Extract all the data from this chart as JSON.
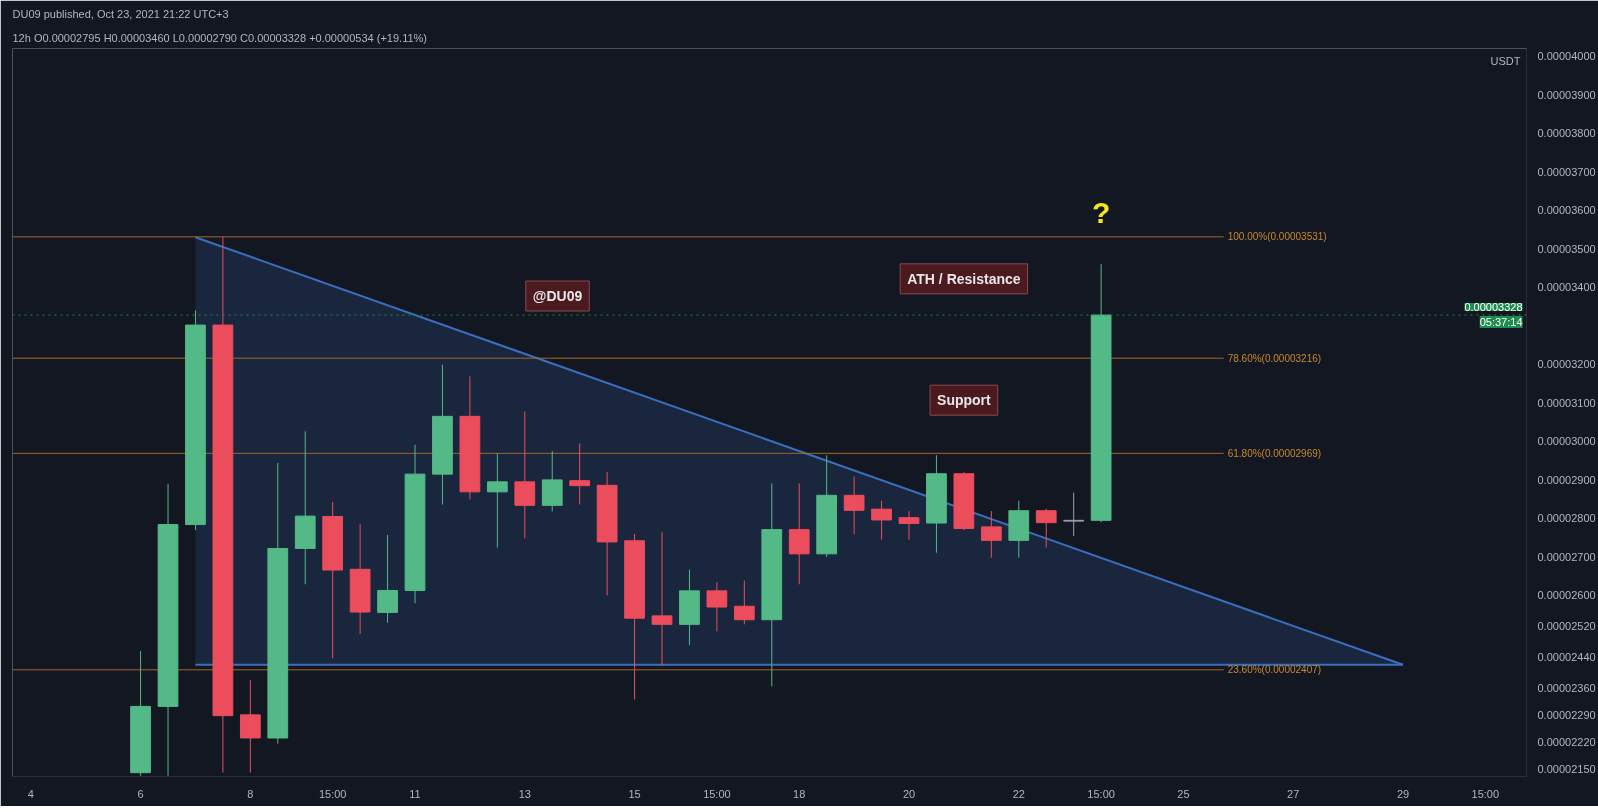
{
  "chart_data": {
    "type": "candlestick",
    "ylabel": "USDT",
    "annotations": [
      "DU09 published, Oct 23, 2021 21:22 UTC+3",
      "12h  O0.00002795 H0.00003460 L0.00002790 C0.00003328 +0.00000534 (+19.11%)",
      "@DU09",
      {
        "text": "ATH / Resistance",
        "x": "2021-10-21T03:00",
        "y": 3.531e-05
      },
      {
        "text": "Support",
        "x": "2021-10-21T03:00",
        "y": 3.216e-05
      },
      "?"
    ],
    "x": [
      "2021-10-06T03:00",
      "2021-10-06T15:00",
      "2021-10-07T03:00",
      "2021-10-07T15:00",
      "2021-10-08T03:00",
      "2021-10-08T15:00",
      "2021-10-09T03:00",
      "2021-10-09T15:00",
      "2021-10-10T03:00",
      "2021-10-10T15:00",
      "2021-10-11T03:00",
      "2021-10-11T15:00",
      "2021-10-12T03:00",
      "2021-10-12T15:00",
      "2021-10-13T03:00",
      "2021-10-13T15:00",
      "2021-10-14T03:00",
      "2021-10-14T15:00",
      "2021-10-15T03:00",
      "2021-10-15T15:00",
      "2021-10-16T03:00",
      "2021-10-16T15:00",
      "2021-10-17T03:00",
      "2021-10-17T15:00",
      "2021-10-18T03:00",
      "2021-10-18T15:00",
      "2021-10-19T03:00",
      "2021-10-19T15:00",
      "2021-10-20T03:00",
      "2021-10-20T15:00",
      "2021-10-21T03:00",
      "2021-10-21T15:00",
      "2021-10-22T03:00",
      "2021-10-22T15:00",
      "2021-10-23T03:00",
      "2021-10-23T15:00"
    ],
    "ohlc": [
      [
        2.14e-05,
        2.456e-05,
        2.132e-05,
        2.312e-05
      ],
      [
        2.312e-05,
        2.89e-05,
        2.132e-05,
        2.784e-05
      ],
      [
        2.784e-05,
        3.34e-05,
        2.77e-05,
        3.302e-05
      ],
      [
        3.302e-05,
        3.531e-05,
        2.14e-05,
        2.288e-05
      ],
      [
        2.29e-05,
        2.38e-05,
        2.14e-05,
        2.23e-05
      ],
      [
        2.23e-05,
        2.944e-05,
        2.215e-05,
        2.722e-05
      ],
      [
        2.722e-05,
        3.026e-05,
        2.629e-05,
        2.806e-05
      ],
      [
        2.805e-05,
        2.843e-05,
        2.437e-05,
        2.666e-05
      ],
      [
        2.668e-05,
        2.785e-05,
        2.5e-05,
        2.557e-05
      ],
      [
        2.556e-05,
        2.757e-05,
        2.529e-05,
        2.613e-05
      ],
      [
        2.613e-05,
        2.991e-05,
        2.58e-05,
        2.915e-05
      ],
      [
        2.915e-05,
        3.199e-05,
        2.836e-05,
        3.065e-05
      ],
      [
        3.065e-05,
        3.169e-05,
        2.849e-05,
        2.869e-05
      ],
      [
        2.869e-05,
        2.969e-05,
        2.724e-05,
        2.895e-05
      ],
      [
        2.895e-05,
        3.078e-05,
        2.748e-05,
        2.834e-05
      ],
      [
        2.834e-05,
        2.975e-05,
        2.818e-05,
        2.9e-05
      ],
      [
        2.898e-05,
        2.995e-05,
        2.836e-05,
        2.885e-05
      ],
      [
        2.886e-05,
        2.921e-05,
        2.6e-05,
        2.739e-05
      ],
      [
        2.742e-05,
        2.76e-05,
        2.33e-05,
        2.541e-05
      ],
      [
        2.547e-05,
        2.764e-05,
        2.418e-05,
        2.525e-05
      ],
      [
        2.525e-05,
        2.667e-05,
        2.471e-05,
        2.612e-05
      ],
      [
        2.612e-05,
        2.634e-05,
        2.507e-05,
        2.57e-05
      ],
      [
        2.572e-05,
        2.639e-05,
        2.525e-05,
        2.537e-05
      ],
      [
        2.537e-05,
        2.891e-05,
        2.364e-05,
        2.771e-05
      ],
      [
        2.771e-05,
        2.891e-05,
        2.629e-05,
        2.708e-05
      ],
      [
        2.708e-05,
        2.964e-05,
        2.7e-05,
        2.86e-05
      ],
      [
        2.86e-05,
        2.909e-05,
        2.759e-05,
        2.821e-05
      ],
      [
        2.824e-05,
        2.846e-05,
        2.745e-05,
        2.796e-05
      ],
      [
        2.802e-05,
        2.819e-05,
        2.745e-05,
        2.787e-05
      ],
      [
        2.788e-05,
        2.964e-05,
        2.711e-05,
        2.916e-05
      ],
      [
        2.916e-05,
        2.92e-05,
        2.77e-05,
        2.774e-05
      ],
      [
        2.778e-05,
        2.819e-05,
        2.698e-05,
        2.743e-05
      ],
      [
        2.743e-05,
        2.846e-05,
        2.698e-05,
        2.82e-05
      ],
      [
        2.82e-05,
        2.825e-05,
        2.724e-05,
        2.789e-05
      ],
      [
        2.793e-05,
        2.867e-05,
        2.754e-05,
        2.795e-05
      ],
      [
        2.795e-05,
        3.46e-05,
        2.79e-05,
        3.328e-05
      ]
    ],
    "colors": [
      "#53b987",
      "#53b987",
      "#53b987",
      "#eb4d5c",
      "#eb4d5c",
      "#53b987",
      "#53b987",
      "#eb4d5c",
      "#eb4d5c",
      "#53b987",
      "#53b987",
      "#53b987",
      "#eb4d5c",
      "#53b987",
      "#eb4d5c",
      "#53b987",
      "#eb4d5c",
      "#eb4d5c",
      "#eb4d5c",
      "#eb4d5c",
      "#53b987",
      "#eb4d5c",
      "#eb4d5c",
      "#53b987",
      "#eb4d5c",
      "#53b987",
      "#eb4d5c",
      "#eb4d5c",
      "#eb4d5c",
      "#53b987",
      "#eb4d5c",
      "#eb4d5c",
      "#53b987",
      "#eb4d5c",
      "#9aa0a8",
      "#53b987"
    ],
    "series": [
      {
        "type": "line",
        "color": "#3a6fbf",
        "x": [
          "2021-10-07T03:00",
          "2021-10-29T03:00"
        ],
        "values": [
          2.42e-05,
          2.42e-05
        ]
      },
      {
        "type": "area",
        "color": "#3a6fbf",
        "x": [
          "2021-10-07T03:00",
          "2021-10-29T03:00"
        ],
        "values": [
          3.53e-05,
          2.42e-05
        ]
      }
    ],
    "ref_lines": [
      {
        "axis": "y",
        "value": 3.531e-05,
        "label": "100.00%(0.00003531)",
        "color": "#a0672a"
      },
      {
        "axis": "y",
        "value": 3.216e-05,
        "label": "78.60%(0.00003216)",
        "color": "#a0672a"
      },
      {
        "axis": "y",
        "value": 2.969e-05,
        "label": "61.80%(0.00002969)",
        "color": "#a0672a"
      },
      {
        "axis": "y",
        "value": 2.407e-05,
        "label": "23.60%(0.00002407)",
        "color": "#a0672a"
      },
      {
        "axis": "y",
        "value": 3.328e-05,
        "label": "0.00003328\n05:37:14",
        "color": "#1e8c4e",
        "line_style": "dotted"
      }
    ],
    "xlim": [
      "2021-10-03T19:00",
      "2021-10-31T09:00"
    ],
    "xticks": [
      {
        "value": "2021-10-04T03:00",
        "label": "4"
      },
      {
        "value": "2021-10-06T03:00",
        "label": "6"
      },
      {
        "value": "2021-10-08T03:00",
        "label": "8"
      },
      {
        "value": "2021-10-09T15:00",
        "label": "15:00"
      },
      {
        "value": "2021-10-11T03:00",
        "label": "11"
      },
      {
        "value": "2021-10-13T03:00",
        "label": "13"
      },
      {
        "value": "2021-10-15T03:00",
        "label": "15"
      },
      {
        "value": "2021-10-16T15:00",
        "label": "15:00"
      },
      {
        "value": "2021-10-18T03:00",
        "label": "18"
      },
      {
        "value": "2021-10-20T03:00",
        "label": "20"
      },
      {
        "value": "2021-10-22T03:00",
        "label": "22"
      },
      {
        "value": "2021-10-23T15:00",
        "label": "15:00"
      },
      {
        "value": "2021-10-25T03:00",
        "label": "25"
      },
      {
        "value": "2021-10-27T03:00",
        "label": "27"
      },
      {
        "value": "2021-10-29T03:00",
        "label": "29"
      },
      {
        "value": "2021-10-30T15:00",
        "label": "15:00"
      }
    ],
    "ylim": [
      2.13e-05,
      4.02e-05
    ],
    "yticks": [
      {
        "value": 2.15e-05,
        "label": "0.00002150"
      },
      {
        "value": 2.22e-05,
        "label": "0.00002220"
      },
      {
        "value": 2.29e-05,
        "label": "0.00002290"
      },
      {
        "value": 2.36e-05,
        "label": "0.00002360"
      },
      {
        "value": 2.44e-05,
        "label": "0.00002440"
      },
      {
        "value": 2.52e-05,
        "label": "0.00002520"
      },
      {
        "value": 2.6e-05,
        "label": "0.00002600"
      },
      {
        "value": 2.7e-05,
        "label": "0.00002700"
      },
      {
        "value": 2.8e-05,
        "label": "0.00002800"
      },
      {
        "value": 2.9e-05,
        "label": "0.00002900"
      },
      {
        "value": 3e-05,
        "label": "0.00003000"
      },
      {
        "value": 3.1e-05,
        "label": "0.00003100"
      },
      {
        "value": 3.2e-05,
        "label": "0.00003200"
      },
      {
        "value": 3.4e-05,
        "label": "0.00003400"
      },
      {
        "value": 3.5e-05,
        "label": "0.00003500"
      },
      {
        "value": 3.6e-05,
        "label": "0.00003600"
      },
      {
        "value": 3.7e-05,
        "label": "0.00003700"
      },
      {
        "value": 3.8e-05,
        "label": "0.00003800"
      },
      {
        "value": 3.9e-05,
        "label": "0.00003900"
      },
      {
        "value": 4e-05,
        "label": "0.00004000"
      }
    ]
  }
}
